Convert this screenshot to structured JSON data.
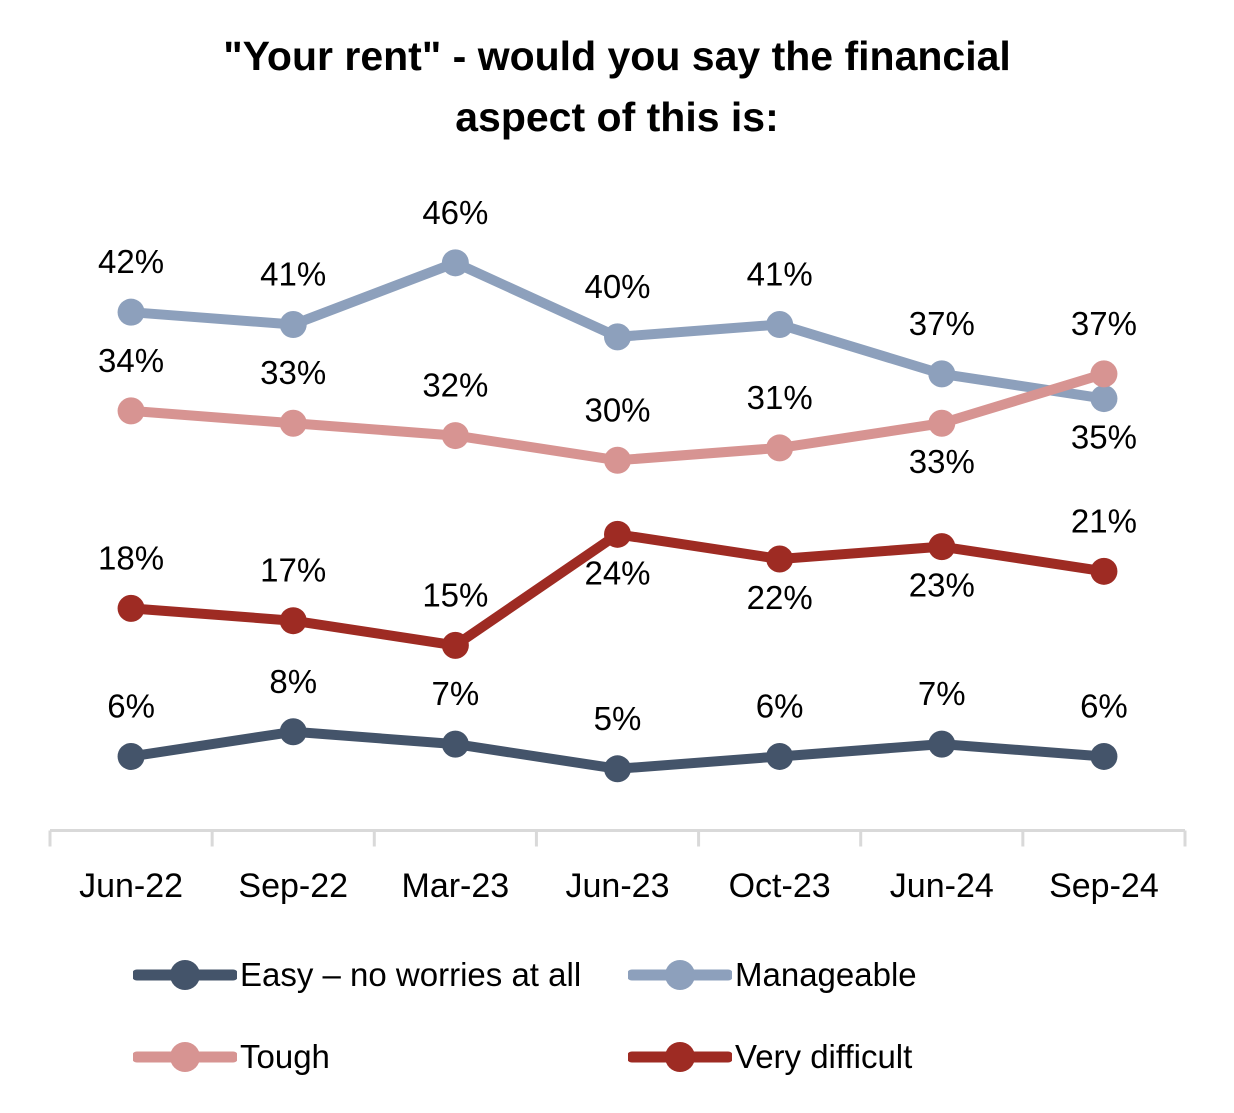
{
  "title": {
    "line1": "\"Your rent\" - would you say the financial",
    "line2": "aspect of this is:"
  },
  "chart_data": {
    "type": "line",
    "title": "\"Your rent\" - would you say the financial aspect of this is:",
    "categories": [
      "Jun-22",
      "Sep-22",
      "Mar-23",
      "Jun-23",
      "Oct-23",
      "Jun-24",
      "Sep-24"
    ],
    "series": [
      {
        "name": "Easy – no worries at all",
        "color": "#44546A",
        "values": [
          6,
          8,
          7,
          5,
          6,
          7,
          6
        ],
        "labels": [
          "6%",
          "8%",
          "7%",
          "5%",
          "6%",
          "7%",
          "6%"
        ],
        "label_positions": [
          "above",
          "above",
          "above",
          "above",
          "above",
          "above",
          "above"
        ]
      },
      {
        "name": "Manageable",
        "color": "#8DA0BC",
        "values": [
          42,
          41,
          46,
          40,
          41,
          37,
          35
        ],
        "labels": [
          "42%",
          "41%",
          "46%",
          "40%",
          "41%",
          "37%",
          "35%"
        ],
        "label_positions": [
          "above",
          "above",
          "above",
          "above",
          "above",
          "above",
          "below"
        ]
      },
      {
        "name": "Tough",
        "color": "#D79492",
        "values": [
          34,
          33,
          32,
          30,
          31,
          33,
          37
        ],
        "labels": [
          "34%",
          "33%",
          "32%",
          "30%",
          "31%",
          "33%",
          "37%"
        ],
        "label_positions": [
          "above",
          "above",
          "above",
          "above",
          "above",
          "below",
          "above"
        ]
      },
      {
        "name": "Very difficult",
        "color": "#9E2B23",
        "values": [
          18,
          17,
          15,
          24,
          22,
          23,
          21
        ],
        "labels": [
          "18%",
          "17%",
          "15%",
          "24%",
          "22%",
          "23%",
          "21%"
        ],
        "label_positions": [
          "above",
          "above",
          "above",
          "below",
          "below",
          "below",
          "above"
        ]
      }
    ],
    "value_suffix": "%",
    "ylim": [
      0,
      50
    ],
    "grid": false,
    "y_axis_visible": false,
    "x_axis_color": "#D9D9D9",
    "data_label_color": "#000000",
    "legend_position": "bottom"
  }
}
